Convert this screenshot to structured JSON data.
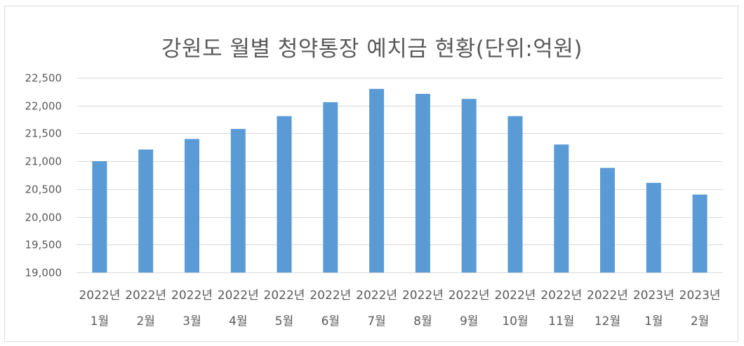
{
  "chart_data": {
    "type": "bar",
    "title": "강원도 월별 청약통장 예치금 현황(단위:억원)",
    "categories": [
      [
        "2022년",
        "1월"
      ],
      [
        "2022년",
        "2월"
      ],
      [
        "2022년",
        "3월"
      ],
      [
        "2022년",
        "4월"
      ],
      [
        "2022년",
        "5월"
      ],
      [
        "2022년",
        "6월"
      ],
      [
        "2022년",
        "7월"
      ],
      [
        "2022년",
        "8월"
      ],
      [
        "2022년",
        "9월"
      ],
      [
        "2022년",
        "10월"
      ],
      [
        "2022년",
        "11월"
      ],
      [
        "2022년",
        "12월"
      ],
      [
        "2023년",
        "1월"
      ],
      [
        "2023년",
        "2월"
      ]
    ],
    "values": [
      21000,
      21210,
      21400,
      21580,
      21810,
      22060,
      22300,
      22210,
      22120,
      21810,
      21300,
      20880,
      20610,
      20400
    ],
    "ylim": [
      19000,
      22500
    ],
    "yticks": [
      "19,000",
      "19,500",
      "20,000",
      "20,500",
      "21,000",
      "21,500",
      "22,000",
      "22,500"
    ],
    "ytick_values": [
      19000,
      19500,
      20000,
      20500,
      21000,
      21500,
      22000,
      22500
    ],
    "xlabel": "",
    "ylabel": "",
    "grid": true,
    "legend": "none",
    "bar_color": "#5b9bd5",
    "grid_color": "#d9d9d9"
  }
}
